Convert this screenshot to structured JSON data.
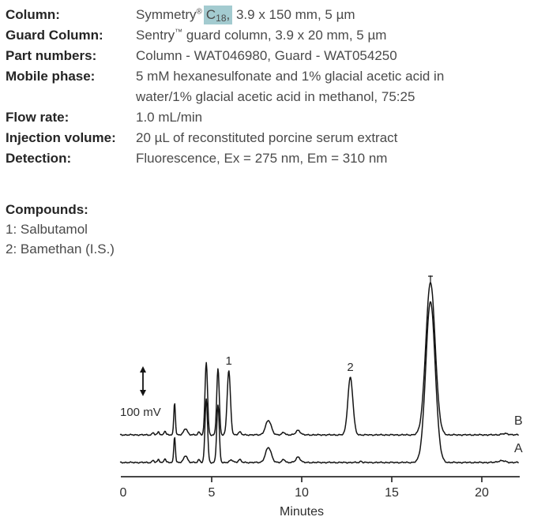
{
  "method": {
    "column_label": "Column:",
    "column_brand": "Symmetry",
    "column_reg": "®",
    "column_hl_c": "C",
    "column_hl_sub": "18",
    "column_hl_comma": ",",
    "column_rest": " 3.9 x 150 mm, 5 µm",
    "guard_label": "Guard Column:",
    "guard_brand": "Sentry",
    "guard_tm": "™",
    "guard_rest": " guard column, 3.9 x 20 mm, 5 µm",
    "part_label": "Part numbers:",
    "part_value": "Column - WAT046980, Guard - WAT054250",
    "mobile_label": "Mobile phase:",
    "mobile_line1": "5 mM hexanesulfonate and 1% glacial acetic acid in",
    "mobile_line2": "water/1% glacial acetic acid in methanol, 75:25",
    "flow_label": "Flow rate:",
    "flow_value": "1.0 mL/min",
    "injection_label": "Injection volume:",
    "injection_value": "20 µL of reconstituted porcine serum extract",
    "detection_label": "Detection:",
    "detection_value": "Fluorescence, Ex = 275 nm, Em = 310 nm"
  },
  "compounds": {
    "heading": "Compounds:",
    "items": [
      "1: Salbutamol",
      "2: Bamethan (I.S.)"
    ]
  },
  "chart_data": {
    "type": "line",
    "xlabel": "Minutes",
    "x_ticks": [
      0,
      5,
      10,
      15,
      20
    ],
    "x_tick_labels": [
      "0",
      "5",
      "10",
      "15",
      "20"
    ],
    "x_range": [
      0,
      22.1
    ],
    "scale_bar": {
      "label": "100 mV",
      "mv": 100
    },
    "peak_annotations": [
      {
        "label": "1",
        "t": 5.95
      },
      {
        "label": "2",
        "t": 12.7
      }
    ],
    "traces": [
      {
        "name": "B",
        "peaks": [
          {
            "t": 1.75,
            "mv": 8,
            "w": 0.05
          },
          {
            "t": 2.05,
            "mv": 11,
            "w": 0.05
          },
          {
            "t": 2.4,
            "mv": 14,
            "w": 0.05
          },
          {
            "t": 2.94,
            "mv": 111,
            "w": 0.045
          },
          {
            "t": 3.55,
            "mv": 22,
            "w": 0.1
          },
          {
            "t": 4.3,
            "mv": 10,
            "w": 0.06
          },
          {
            "t": 4.7,
            "mv": 249,
            "w": 0.07
          },
          {
            "t": 5.35,
            "mv": 227,
            "w": 0.07
          },
          {
            "t": 5.95,
            "mv": 219,
            "w": 0.09
          },
          {
            "t": 6.55,
            "mv": 10,
            "w": 0.08
          },
          {
            "t": 8.15,
            "mv": 49,
            "w": 0.16
          },
          {
            "t": 9.0,
            "mv": 9,
            "w": 0.08
          },
          {
            "t": 9.8,
            "mv": 16,
            "w": 0.12
          },
          {
            "t": 12.7,
            "mv": 197,
            "w": 0.14
          },
          {
            "t": 17.15,
            "mv": 522,
            "w": 0.26
          },
          {
            "t": 21.3,
            "mv": 4,
            "w": 0.2
          }
        ]
      },
      {
        "name": "A",
        "peaks": [
          {
            "t": 1.75,
            "mv": 8,
            "w": 0.05
          },
          {
            "t": 2.05,
            "mv": 11,
            "w": 0.05
          },
          {
            "t": 2.4,
            "mv": 14,
            "w": 0.05
          },
          {
            "t": 2.94,
            "mv": 89,
            "w": 0.045
          },
          {
            "t": 3.55,
            "mv": 24,
            "w": 0.1
          },
          {
            "t": 4.3,
            "mv": 10,
            "w": 0.06
          },
          {
            "t": 4.7,
            "mv": 219,
            "w": 0.07
          },
          {
            "t": 5.35,
            "mv": 197,
            "w": 0.07
          },
          {
            "t": 6.1,
            "mv": 8,
            "w": 0.1
          },
          {
            "t": 6.55,
            "mv": 10,
            "w": 0.08
          },
          {
            "t": 8.15,
            "mv": 51,
            "w": 0.16
          },
          {
            "t": 9.0,
            "mv": 11,
            "w": 0.08
          },
          {
            "t": 9.8,
            "mv": 19,
            "w": 0.12
          },
          {
            "t": 13.3,
            "mv": 5,
            "w": 0.05
          },
          {
            "t": 17.15,
            "mv": 551,
            "w": 0.26
          },
          {
            "t": 21.1,
            "mv": 6,
            "w": 0.2
          }
        ]
      }
    ]
  },
  "colors": {
    "highlight": "#a3cbd0",
    "trace": "#141414",
    "axis": "#2b2b2b"
  }
}
